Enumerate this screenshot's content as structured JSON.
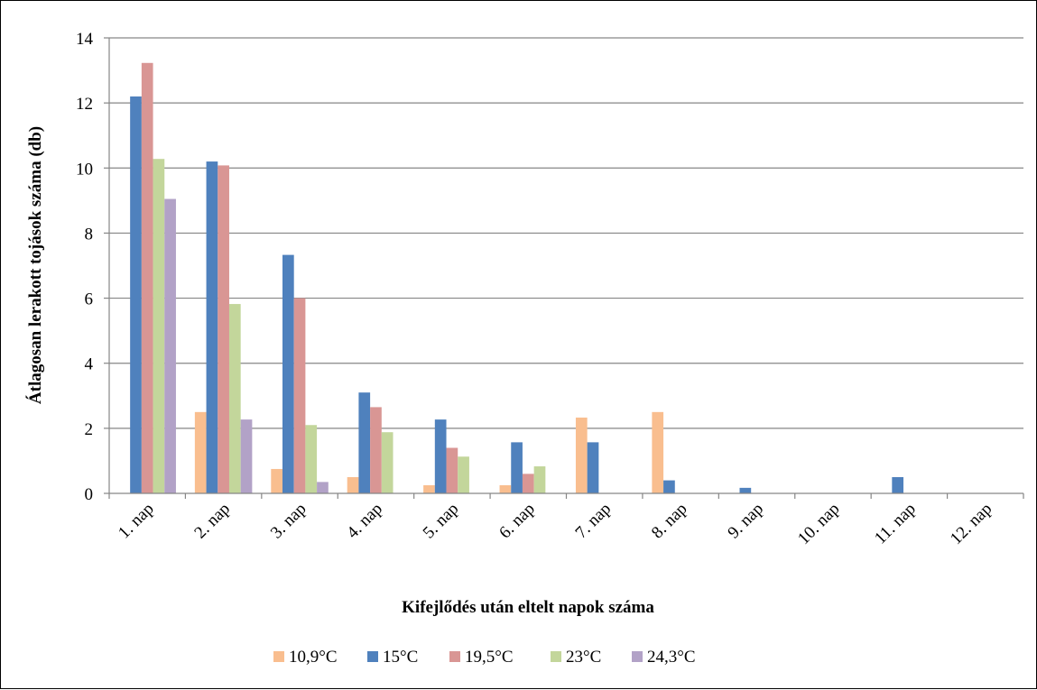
{
  "chart_data": {
    "type": "bar",
    "title": "",
    "xlabel": "Kifejlődés után eltelt napok száma",
    "ylabel": "Átlagosan lerakott tojások száma (db)",
    "ylim": [
      0,
      14
    ],
    "yticks": [
      "0",
      "2",
      "4",
      "6",
      "8",
      "10",
      "12",
      "14"
    ],
    "grid": true,
    "legend_position": "bottom",
    "categories": [
      "1. nap",
      "2. nap",
      "3. nap",
      "4. nap",
      "5. nap",
      "6. nap",
      "7. nap",
      "8. nap",
      "9. nap",
      "10. nap",
      "11. nap",
      "12. nap"
    ],
    "series": [
      {
        "name": "10,9°C",
        "color": "#F9BE8F",
        "values": [
          0,
          2.5,
          0.75,
          0.5,
          0.25,
          0.25,
          2.33,
          2.5,
          0,
          0,
          0,
          0
        ]
      },
      {
        "name": "15°C",
        "color": "#4F81BD",
        "values": [
          12.2,
          10.2,
          7.33,
          3.1,
          2.27,
          1.57,
          1.57,
          0.4,
          0.17,
          0,
          0.5,
          0
        ]
      },
      {
        "name": "19,5°C",
        "color": "#D99694",
        "values": [
          13.23,
          10.08,
          6.0,
          2.65,
          1.4,
          0.6,
          0,
          0,
          0,
          0,
          0,
          0
        ]
      },
      {
        "name": "23°C",
        "color": "#C3D69B",
        "values": [
          10.28,
          5.82,
          2.1,
          1.88,
          1.13,
          0.83,
          0,
          0,
          0,
          0,
          0,
          0
        ]
      },
      {
        "name": "24,3°C",
        "color": "#B2A2C7",
        "values": [
          9.05,
          2.27,
          0.35,
          0,
          0,
          0,
          0,
          0,
          0,
          0,
          0,
          0
        ]
      }
    ]
  }
}
